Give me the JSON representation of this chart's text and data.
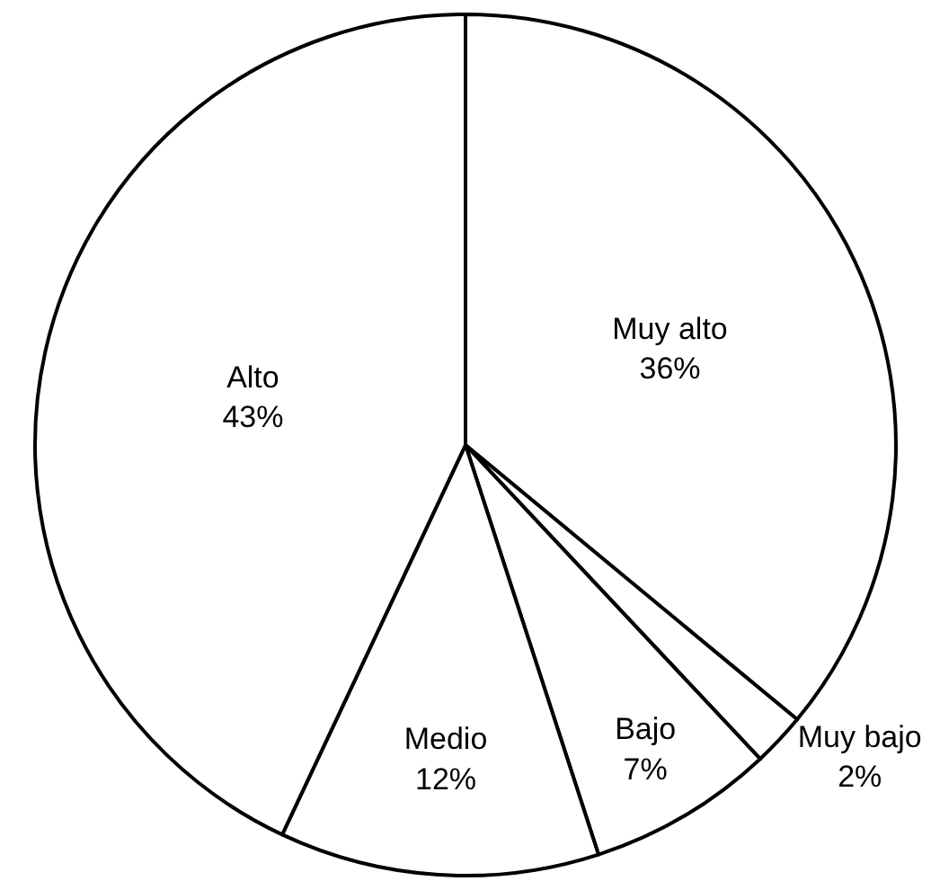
{
  "chart_data": {
    "type": "pie",
    "categories": [
      "Muy alto",
      "Muy bajo",
      "Bajo",
      "Medio",
      "Alto"
    ],
    "values": [
      36,
      2,
      7,
      12,
      43
    ],
    "value_labels": [
      "36%",
      "2%",
      "7%",
      "12%",
      "43%"
    ],
    "colors": [
      "#ffffff",
      "#ffffff",
      "#ffffff",
      "#ffffff",
      "#ffffff"
    ],
    "legend": false
  }
}
